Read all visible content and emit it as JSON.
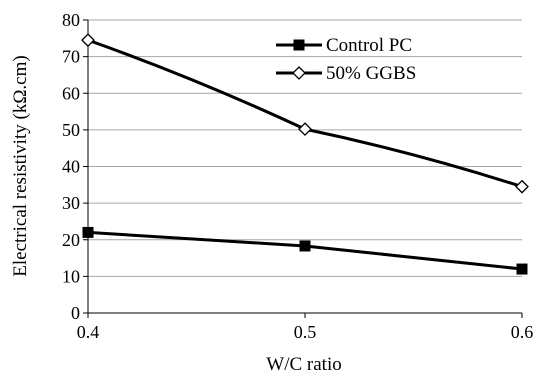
{
  "chart_data": {
    "type": "line",
    "xlabel": "W/C ratio",
    "ylabel": "Electrical resistivity (kΩ.cm)",
    "x": [
      0.4,
      0.5,
      0.6
    ],
    "x_ticks": [
      "0.4",
      "0.5",
      "0.6"
    ],
    "xlim": [
      0.4,
      0.6
    ],
    "ylim": [
      0,
      80
    ],
    "y_ticks": [
      "0",
      "10",
      "20",
      "30",
      "40",
      "50",
      "60",
      "70",
      "80"
    ],
    "grid": "horizontal",
    "legend_position": "top-right",
    "series": [
      {
        "name": "Control PC",
        "marker": "filled-square",
        "color": "#000000",
        "values": [
          22,
          18.3,
          12
        ]
      },
      {
        "name": "50% GGBS",
        "marker": "open-diamond",
        "color": "#000000",
        "values": [
          74.5,
          50.2,
          34.5
        ]
      }
    ]
  }
}
